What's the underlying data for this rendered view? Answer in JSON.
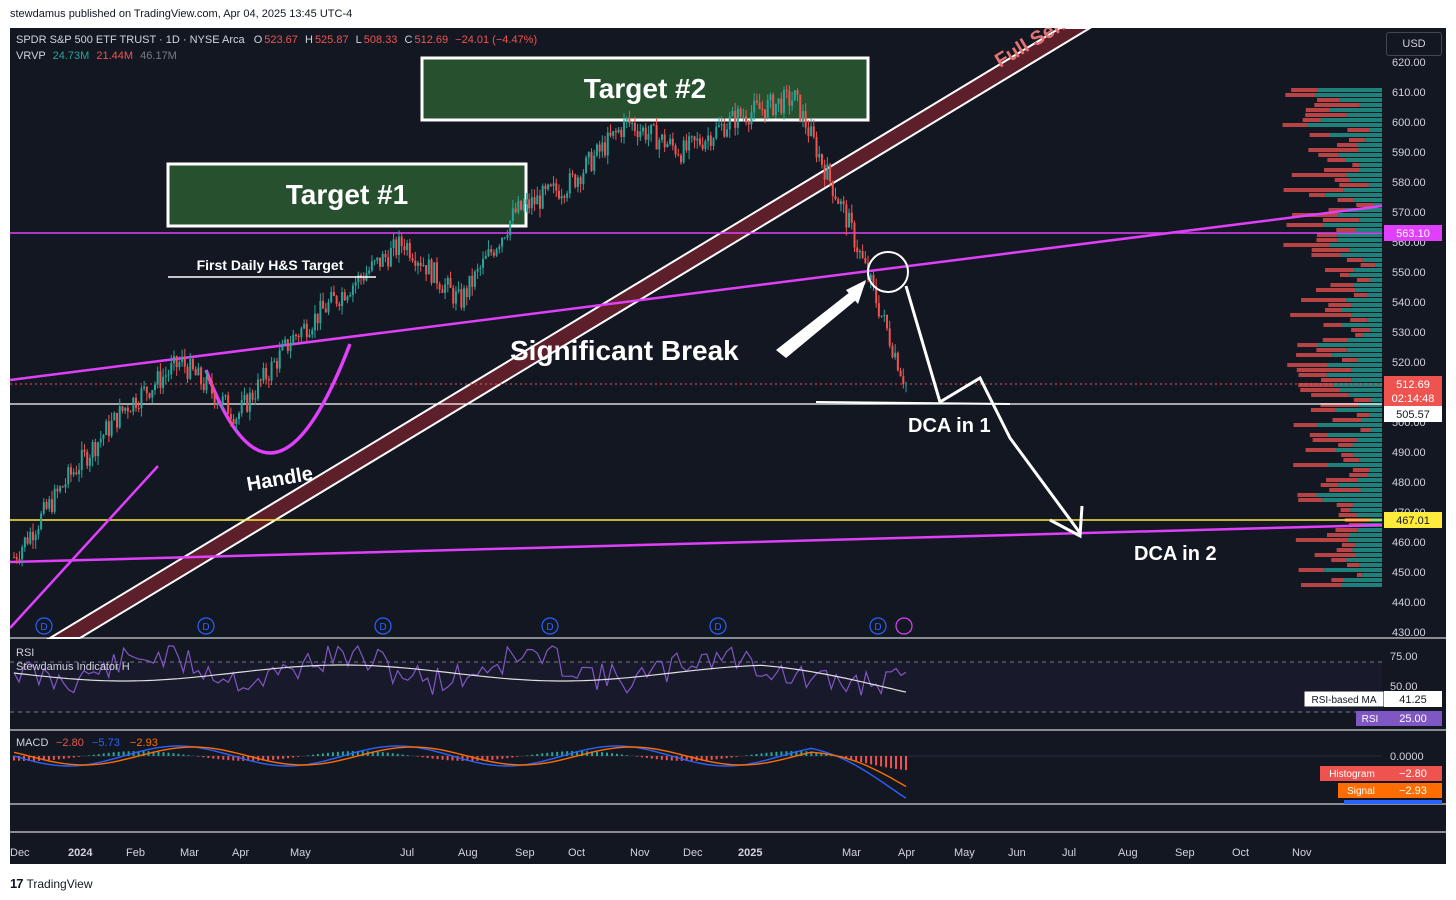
{
  "caption": "stewdamus published on TradingView.com, Apr 04, 2025 13:45 UTC-4",
  "brand": "TradingView",
  "header": {
    "symbol": "SPDR S&P 500 ETF TRUST · 1D · NYSE Arca",
    "o_label": "O",
    "o_value": "523.67",
    "h_label": "H",
    "h_value": "525.87",
    "l_label": "L",
    "l_value": "508.33",
    "c_label": "C",
    "c_value": "512.69",
    "change": "−24.01 (−4.47%)",
    "vrvp_label": "VRVP",
    "vrvp_v1": "24.73M",
    "vrvp_v2": "21.44M",
    "vrvp_v3": "46.17M",
    "currency": "USD"
  },
  "colors": {
    "background": "#131722",
    "up": "#26a69a",
    "down": "#ef5350",
    "magenta": "#e040fb",
    "yellow": "#ffeb3b",
    "channel": "#5d1f2a",
    "target_box": "#27502f",
    "rsi": "#7e57c2",
    "macd": "#2962ff",
    "signal": "#ff6d00"
  },
  "annotations": {
    "target1": "Target #1",
    "target2": "Target #2",
    "full_send": "Full Send",
    "first_hs": "First Daily H&S Target",
    "sig_break": "Significant Break",
    "handle": "Handle",
    "dca1": "DCA in 1",
    "dca2": "DCA in 2"
  },
  "price_labels": {
    "level_563": "563.10",
    "last_price": "512.69",
    "countdown": "02:14:48",
    "level_505": "505.57",
    "level_467": "467.01"
  },
  "rsi_pane": {
    "title": "RSI",
    "indicator": "Stewdamus Indicator H",
    "ticks": [
      "75.00",
      "50.00",
      "25.00"
    ],
    "ma_label": "RSI-based MA",
    "ma_value": "41.25",
    "rsi_label": "RSI",
    "rsi_value": "25.00"
  },
  "macd_pane": {
    "title": "MACD",
    "v1": "−2.80",
    "v2": "−5.73",
    "v3": "−2.93",
    "zero_tick": "0.0000",
    "hist_label": "Histogram",
    "hist_value": "−2.80",
    "signal_label": "Signal",
    "signal_value": "−2.93",
    "macd_label": "MACD",
    "macd_value": "−5.73"
  },
  "chart_data": {
    "type": "line",
    "title": "SPDR S&P 500 ETF TRUST · 1D · NYSE Arca",
    "xlabel": "",
    "ylabel": "",
    "ylim": [
      430,
      620
    ],
    "y_ticks": [
      "620.00",
      "610.00",
      "600.00",
      "590.00",
      "580.00",
      "570.00",
      "560.00",
      "550.00",
      "540.00",
      "530.00",
      "520.00",
      "510.00",
      "500.00",
      "490.00",
      "480.00",
      "470.00",
      "460.00",
      "450.00",
      "440.00",
      "430.00"
    ],
    "x_ticks": [
      "Dec",
      "2024",
      "Feb",
      "Mar",
      "Apr",
      "May",
      "Jul",
      "Aug",
      "Sep",
      "Oct",
      "Nov",
      "Dec",
      "2025",
      "Mar",
      "Apr",
      "May",
      "Jun",
      "Jul",
      "Aug",
      "Sep",
      "Oct",
      "Nov"
    ],
    "grid": false,
    "series": [
      {
        "name": "SPDR S&P 500 ETF TRUST",
        "x": [
          "2023-12",
          "2024-01",
          "2024-02",
          "2024-03",
          "2024-04",
          "2024-05",
          "2024-06",
          "2024-07",
          "2024-08",
          "2024-09",
          "2024-10",
          "2024-11",
          "2024-12",
          "2025-01",
          "2025-02",
          "2025-03",
          "2025-04"
        ],
        "values": [
          455,
          482,
          505,
          520,
          502,
          528,
          545,
          560,
          540,
          570,
          580,
          600,
          590,
          602,
          608,
          565,
          512.69
        ]
      }
    ],
    "levels": [
      563.1,
      505.57,
      467.01
    ]
  }
}
